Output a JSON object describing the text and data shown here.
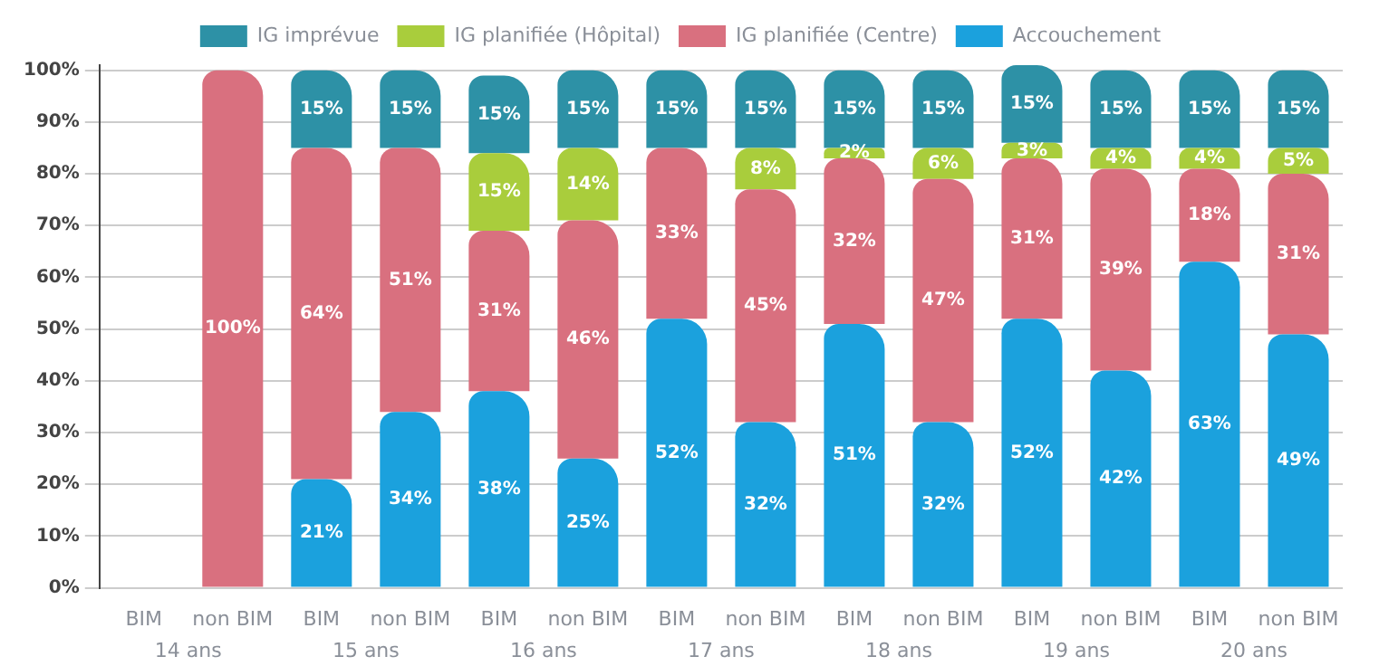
{
  "chart_data": {
    "type": "bar",
    "stacked": true,
    "grid": "y",
    "legend": "top",
    "categories": [
      "BIM",
      "non BIM",
      "BIM",
      "non BIM",
      "BIM",
      "non BIM",
      "BIM",
      "non BIM",
      "BIM",
      "non BIM",
      "BIM",
      "non BIM",
      "BIM",
      "non BIM"
    ],
    "annotations": [
      "14 ans",
      "15 ans",
      "16 ans",
      "17 ans",
      "18 ans",
      "19 ans",
      "20 ans"
    ],
    "ylim": [
      0,
      101
    ],
    "yticks": [
      {
        "value": 0,
        "label": "0%"
      },
      {
        "value": 10,
        "label": "10%"
      },
      {
        "value": 20,
        "label": "20%"
      },
      {
        "value": 30,
        "label": "30%"
      },
      {
        "value": 40,
        "label": "40%"
      },
      {
        "value": 50,
        "label": "50%"
      },
      {
        "value": 60,
        "label": "60%"
      },
      {
        "value": 70,
        "label": "70%"
      },
      {
        "value": 80,
        "label": "80%"
      },
      {
        "value": 90,
        "label": "90%"
      },
      {
        "value": 100,
        "label": "100%"
      }
    ],
    "series": [
      {
        "name": "Accouchement",
        "color": "#1ba1dd",
        "values": [
          null,
          null,
          21,
          34,
          38,
          25,
          52,
          32,
          51,
          32,
          52,
          42,
          63,
          49
        ],
        "value_labels": [
          null,
          null,
          "21%",
          "34%",
          "38%",
          "25%",
          "52%",
          "32%",
          "51%",
          "32%",
          "52%",
          "42%",
          "63%",
          "49%"
        ]
      },
      {
        "name": "IG planifiée (Centre)",
        "color": "#d9707f",
        "values": [
          null,
          100,
          64,
          51,
          31,
          46,
          33,
          45,
          32,
          47,
          31,
          39,
          18,
          31
        ],
        "value_labels": [
          null,
          "100%",
          "64%",
          "51%",
          "31%",
          "46%",
          "33%",
          "45%",
          "32%",
          "47%",
          "31%",
          "39%",
          "18%",
          "31%"
        ]
      },
      {
        "name": "IG planifiée (Hôpital)",
        "color": "#a9cd3c",
        "values": [
          null,
          null,
          null,
          null,
          15,
          14,
          null,
          8,
          2,
          6,
          3,
          4,
          4,
          5
        ],
        "value_labels": [
          null,
          null,
          null,
          null,
          "15%",
          "14%",
          null,
          "8%",
          "2%",
          "6%",
          "3%",
          "4%",
          "4%",
          "5%"
        ]
      },
      {
        "name": "IG imprévue",
        "color": "#2d91a6",
        "values": [
          null,
          null,
          15,
          15,
          15,
          15,
          15,
          15,
          15,
          15,
          15,
          15,
          15,
          15
        ],
        "value_labels": [
          null,
          null,
          "15%",
          "15%",
          "15%",
          "15%",
          "15%",
          "15%",
          "15%",
          "15%",
          "15%",
          "15%",
          "15%",
          "15%"
        ]
      }
    ]
  }
}
